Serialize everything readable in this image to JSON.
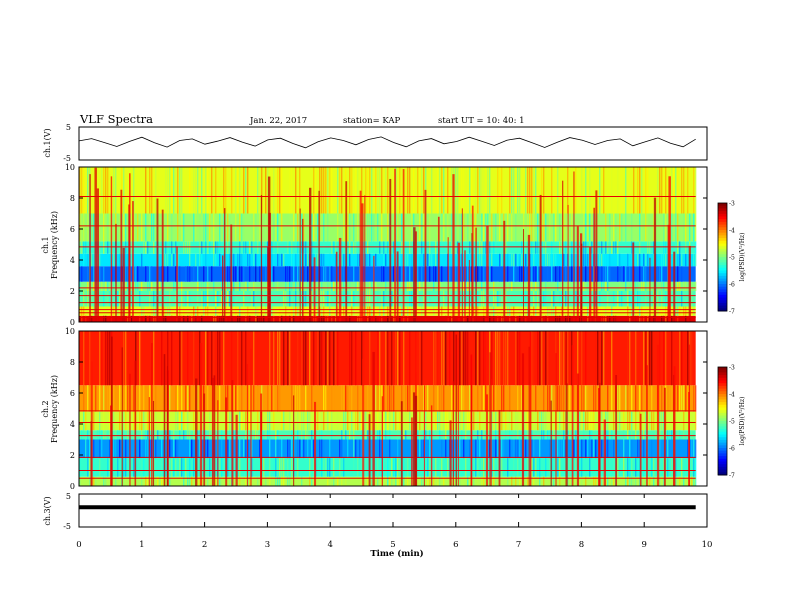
{
  "header": {
    "title": "VLF Spectra",
    "date": "Jan. 22, 2017",
    "station": "station= KAP",
    "start_ut": "start  UT  =   10: 40: 1"
  },
  "chart_data": [
    {
      "id": "ch1-waveform",
      "type": "line",
      "ylabel": "ch.1(V)",
      "ylim": [
        -5,
        5
      ],
      "yticks": [
        "5",
        "-5"
      ],
      "xlim": [
        0,
        10
      ],
      "series": [
        {
          "color": "#000000",
          "x_end": 9.82,
          "values": [
            0.8,
            1.5,
            0.3,
            -0.9,
            0.6,
            1.9,
            0.2,
            -1.1,
            0.9,
            1.4,
            -0.2,
            0.7,
            1.8,
            0.4,
            -0.8,
            1.1,
            1.6,
            0.0,
            -1.3,
            0.5,
            1.7,
            0.9,
            -0.4,
            1.2,
            2.0,
            0.3,
            -1.0,
            0.8,
            1.5,
            -0.1,
            0.6,
            1.9,
            0.7,
            -0.6,
            1.0,
            1.6,
            0.2,
            -1.2,
            0.4,
            1.8,
            1.0,
            -0.3,
            0.9,
            1.4,
            -0.7,
            0.5,
            1.7,
            0.1,
            -1.0,
            1.3
          ]
        }
      ]
    },
    {
      "id": "ch1-spectrogram",
      "type": "heatmap",
      "xlabel": "",
      "ylabel": "Frequency (kHz)",
      "panel_label": "ch.1",
      "ylim": [
        0,
        10
      ],
      "yticks": [
        "0",
        "2",
        "4",
        "6",
        "8",
        "10"
      ],
      "colorbar": {
        "label": "log(PSD)(V²/Hz)",
        "range": [
          -7,
          -3
        ],
        "ticks": [
          "-3",
          "-4",
          "-5",
          "-6",
          "-7"
        ]
      },
      "bands": [
        {
          "from": 0.0,
          "to": 0.4,
          "level": -3.4
        },
        {
          "from": 0.4,
          "to": 1.0,
          "level": -4.6
        },
        {
          "from": 1.0,
          "to": 2.0,
          "level": -5.2
        },
        {
          "from": 2.0,
          "to": 2.6,
          "level": -5.0
        },
        {
          "from": 2.6,
          "to": 3.6,
          "level": -6.1
        },
        {
          "from": 3.6,
          "to": 4.4,
          "level": -5.6
        },
        {
          "from": 4.4,
          "to": 5.2,
          "level": -5.3
        },
        {
          "from": 5.2,
          "to": 7.0,
          "level": -4.9
        },
        {
          "from": 7.0,
          "to": 10.0,
          "level": -4.6
        }
      ],
      "lines_khz": [
        0.3,
        0.6,
        0.8,
        1.25,
        1.7,
        2.2,
        4.85,
        6.2,
        8.1
      ]
    },
    {
      "id": "ch2-spectrogram",
      "type": "heatmap",
      "xlabel": "",
      "ylabel": "Frequency (kHz)",
      "panel_label": "ch.2",
      "ylim": [
        0,
        10
      ],
      "yticks": [
        "0",
        "2",
        "4",
        "6",
        "8",
        "10"
      ],
      "colorbar": {
        "label": "log(PSD)(V²/Hz)",
        "range": [
          -7,
          -3
        ],
        "ticks": [
          "-3",
          "-4",
          "-5",
          "-6",
          "-7"
        ]
      },
      "bands": [
        {
          "from": 0.0,
          "to": 0.6,
          "level": -4.8
        },
        {
          "from": 0.6,
          "to": 1.8,
          "level": -5.3
        },
        {
          "from": 1.8,
          "to": 3.0,
          "level": -5.9
        },
        {
          "from": 3.0,
          "to": 3.6,
          "level": -5.2
        },
        {
          "from": 3.6,
          "to": 4.8,
          "level": -4.7
        },
        {
          "from": 4.8,
          "to": 6.5,
          "level": -4.1
        },
        {
          "from": 6.5,
          "to": 10.0,
          "level": -3.6
        }
      ],
      "lines_khz": [
        0.5,
        1.0,
        1.85,
        3.25,
        4.1,
        4.85
      ]
    },
    {
      "id": "ch3-waveform",
      "type": "line",
      "xlabel": "Time (min)",
      "ylabel": "ch.3(V)",
      "ylim": [
        -5,
        5
      ],
      "yticks": [
        "5",
        "-5"
      ],
      "xlim": [
        0,
        10
      ],
      "xticks": [
        "0",
        "1",
        "2",
        "3",
        "4",
        "5",
        "6",
        "7",
        "8",
        "9",
        "10"
      ],
      "series": [
        {
          "color": "#000000",
          "x_end": 9.82,
          "constant": 1.0
        }
      ]
    }
  ]
}
